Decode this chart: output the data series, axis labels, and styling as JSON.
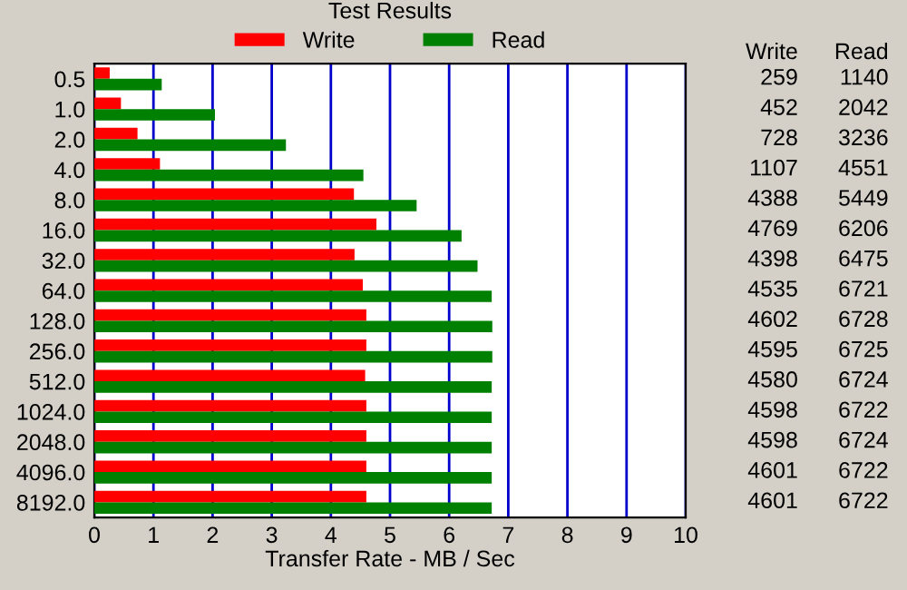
{
  "chart_data": {
    "type": "bar",
    "orientation": "horizontal",
    "title": "Test Results",
    "xlabel": "Transfer Rate - MB / Sec",
    "categories": [
      "0.5",
      "1.0",
      "2.0",
      "4.0",
      "8.0",
      "16.0",
      "32.0",
      "64.0",
      "128.0",
      "256.0",
      "512.0",
      "1024.0",
      "2048.0",
      "4096.0",
      "8192.0"
    ],
    "series": [
      {
        "name": "Write",
        "color": "#ff0000",
        "values": [
          0.26,
          0.45,
          0.73,
          1.11,
          4.39,
          4.77,
          4.4,
          4.54,
          4.6,
          4.6,
          4.58,
          4.6,
          4.6,
          4.6,
          4.6
        ]
      },
      {
        "name": "Read",
        "color": "#008000",
        "values": [
          1.14,
          2.04,
          3.24,
          4.55,
          5.45,
          6.21,
          6.48,
          6.72,
          6.73,
          6.73,
          6.72,
          6.72,
          6.72,
          6.72,
          6.72
        ]
      }
    ],
    "annotations": [
      "259",
      "452",
      "728",
      "1107",
      "4388",
      "4769",
      "4398",
      "4535",
      "4602",
      "4595",
      "4580",
      "4598",
      "4598",
      "4601",
      "4601",
      "1140",
      "2042",
      "3236",
      "4551",
      "5449",
      "6206",
      "6475",
      "6721",
      "6728",
      "6725",
      "6724",
      "6722",
      "6724",
      "6722",
      "6722"
    ],
    "xlim": [
      0,
      10
    ],
    "xticks": [
      0,
      1,
      2,
      3,
      4,
      5,
      6,
      7,
      8,
      9,
      10
    ],
    "grid": "x",
    "legend": "top"
  }
}
